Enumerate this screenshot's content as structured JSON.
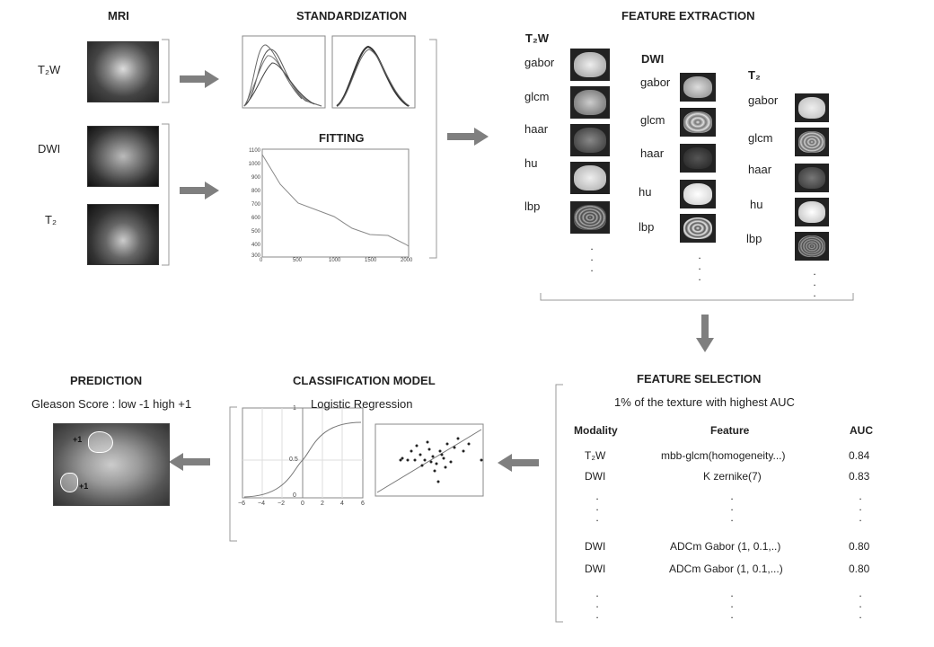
{
  "mri": {
    "title": "MRI",
    "labels": [
      "T₂W",
      "DWI",
      "T₂"
    ]
  },
  "standardization": {
    "title": "STANDARDIZATION"
  },
  "fitting": {
    "title": "FITTING",
    "y_ticks": [
      "1100",
      "1000",
      "900",
      "800",
      "700",
      "600",
      "500",
      "400",
      "300"
    ],
    "x_ticks": [
      "0",
      "500",
      "1000",
      "1500",
      "2000"
    ]
  },
  "feature_extraction": {
    "title": "FEATURE EXTRACTION",
    "groups": [
      {
        "name": "T₂W",
        "features": [
          "gabor",
          "glcm",
          "haar",
          "hu",
          "lbp"
        ]
      },
      {
        "name": "DWI",
        "features": [
          "gabor",
          "glcm",
          "haar",
          "hu",
          "lbp"
        ]
      },
      {
        "name": "T₂",
        "features": [
          "gabor",
          "glcm",
          "haar",
          "hu",
          "lbp"
        ]
      }
    ]
  },
  "feature_selection": {
    "title": "FEATURE SELECTION",
    "subtitle": "1% of  the texture with highest AUC",
    "columns": [
      "Modality",
      "Feature",
      "AUC"
    ],
    "rows": [
      {
        "modality": "T₂W",
        "feature": "mbb-glcm(homogeneity...)",
        "auc": "0.84"
      },
      {
        "modality": "DWI",
        "feature": "K zernike(7)",
        "auc": "0.83"
      },
      {
        "modality": "DWI",
        "feature": "ADCm Gabor (1, 0.1,..)",
        "auc": "0.80"
      },
      {
        "modality": "DWI",
        "feature": "ADCm Gabor (1, 0.1,...)",
        "auc": "0.80"
      }
    ],
    "ellipsis": "."
  },
  "classification": {
    "title": "CLASSIFICATION MODEL",
    "subtitle": "Logistic Regression",
    "sigmoid_y_ticks": [
      "1",
      "0.5",
      "0"
    ],
    "sigmoid_x_ticks": [
      "−6",
      "−4",
      "−2",
      "0",
      "2",
      "4",
      "6"
    ]
  },
  "prediction": {
    "title": "PREDICTION",
    "subtitle": "Gleason Score : low -1  high +1",
    "marks": [
      "+1",
      "+1"
    ]
  },
  "colors": {
    "arrow": "#7f7f7f",
    "bracket": "#999999"
  }
}
